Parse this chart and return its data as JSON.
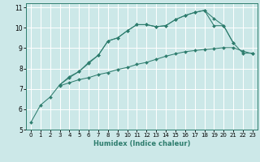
{
  "xlabel": "Humidex (Indice chaleur)",
  "bg_color": "#cce8e8",
  "grid_color": "#ffffff",
  "line_color": "#2e7d6e",
  "xlim": [
    -0.5,
    23.5
  ],
  "ylim": [
    5,
    11.2
  ],
  "x_ticks": [
    0,
    1,
    2,
    3,
    4,
    5,
    6,
    7,
    8,
    9,
    10,
    11,
    12,
    13,
    14,
    15,
    16,
    17,
    18,
    19,
    20,
    21,
    22,
    23
  ],
  "y_ticks": [
    5,
    6,
    7,
    8,
    9,
    10,
    11
  ],
  "series": [
    {
      "x": [
        0,
        1,
        2,
        3,
        4,
        5,
        6,
        7,
        8,
        9,
        10,
        11,
        12,
        13,
        14,
        15,
        16,
        17,
        18,
        19,
        20,
        21
      ],
      "y": [
        5.35,
        6.2,
        6.6,
        7.2,
        7.6,
        7.85,
        8.25,
        8.65,
        9.35,
        9.5,
        9.85,
        10.15,
        10.15,
        10.05,
        10.1,
        10.4,
        10.6,
        10.75,
        10.85,
        10.45,
        10.1,
        9.25
      ]
    },
    {
      "x": [
        3,
        4,
        5,
        6,
        7,
        8,
        9,
        10,
        11,
        12,
        13,
        14,
        15,
        16,
        17,
        18,
        19,
        20,
        21,
        22,
        23
      ],
      "y": [
        7.2,
        7.55,
        7.85,
        8.3,
        8.65,
        9.35,
        9.5,
        9.85,
        10.15,
        10.15,
        10.05,
        10.1,
        10.4,
        10.6,
        10.75,
        10.85,
        10.1,
        10.1,
        9.25,
        8.75,
        8.75
      ]
    },
    {
      "x": [
        3,
        4,
        5,
        6,
        7,
        8,
        9,
        10,
        11,
        12,
        13,
        14,
        15,
        16,
        17,
        18,
        19,
        20,
        21,
        22,
        23
      ],
      "y": [
        7.15,
        7.3,
        7.45,
        7.55,
        7.7,
        7.8,
        7.95,
        8.05,
        8.2,
        8.3,
        8.45,
        8.6,
        8.72,
        8.82,
        8.88,
        8.93,
        8.97,
        9.02,
        9.02,
        8.85,
        8.72
      ]
    }
  ]
}
